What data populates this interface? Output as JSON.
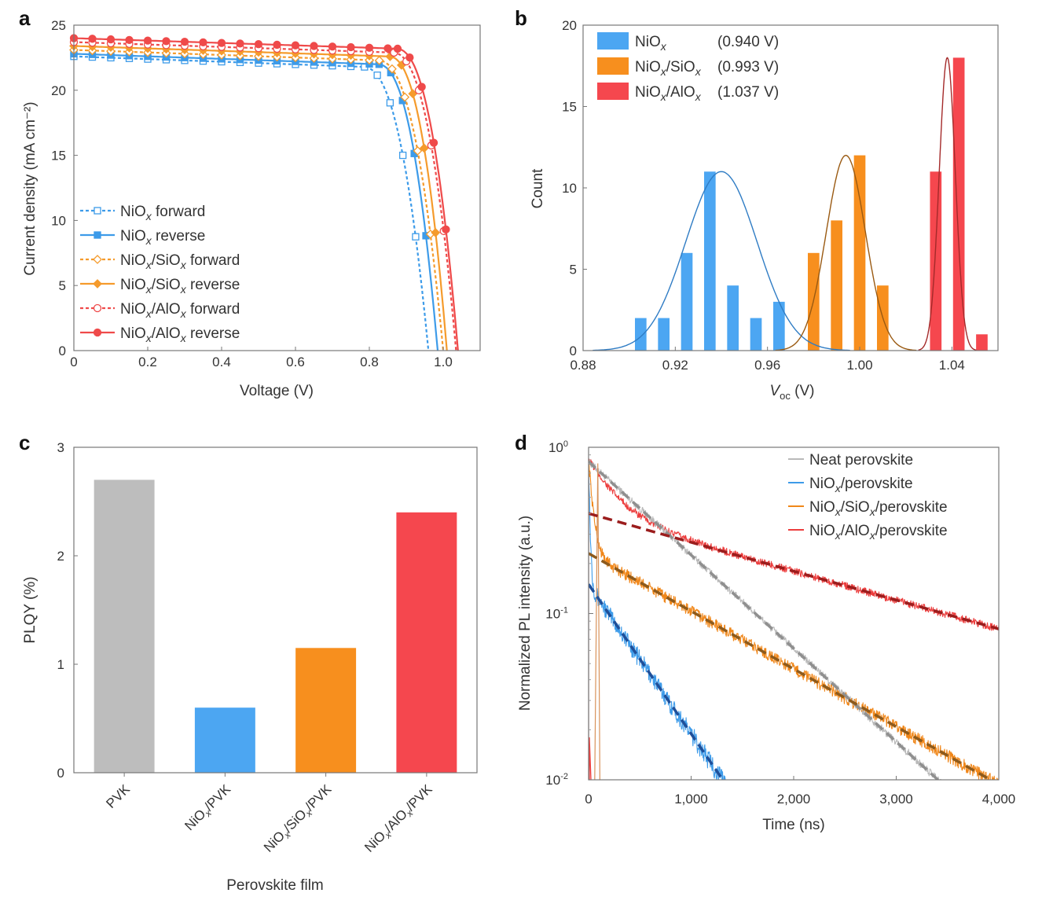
{
  "chart_data": [
    {
      "panel": "a",
      "type": "line",
      "xlabel": "Voltage (V)",
      "ylabel": "Current density (mA cm⁻²)",
      "xlim": [
        0,
        1.1
      ],
      "ylim": [
        0,
        25
      ],
      "xticks": [
        "0",
        "0.2",
        "0.4",
        "0.6",
        "0.8",
        "1.0"
      ],
      "xtick_values": [
        0,
        0.2,
        0.4,
        0.6,
        0.8,
        1.0
      ],
      "yticks": [
        "0",
        "5",
        "10",
        "15",
        "20",
        "25"
      ],
      "ytick_values": [
        0,
        5,
        10,
        15,
        20,
        25
      ],
      "series": [
        {
          "name": "NiOx forward",
          "base": "NiO",
          "sub": "x",
          "rest": " forward",
          "color": "#3d9be9",
          "style": "dotted",
          "marker": "open-square",
          "jsc": 22.6,
          "voc": 0.96,
          "knee": 0.78
        },
        {
          "name": "NiOx reverse",
          "base": "NiO",
          "sub": "x",
          "rest": " reverse",
          "color": "#3d9be9",
          "style": "solid",
          "marker": "filled-square",
          "jsc": 22.8,
          "voc": 0.985,
          "knee": 0.82
        },
        {
          "name": "NiOx/SiOx forward",
          "base": "NiO",
          "sub": "x",
          "rest": "/SiO",
          "sub2": "x",
          "rest2": " forward",
          "color": "#f59b2c",
          "style": "dotted",
          "marker": "open-diamond",
          "jsc": 23.1,
          "voc": 1.0,
          "knee": 0.82
        },
        {
          "name": "NiOx/SiOx reverse",
          "base": "NiO",
          "sub": "x",
          "rest": "/SiO",
          "sub2": "x",
          "rest2": " reverse",
          "color": "#f59b2c",
          "style": "solid",
          "marker": "filled-diamond",
          "jsc": 23.4,
          "voc": 1.01,
          "knee": 0.85
        },
        {
          "name": "NiOx/AlOx forward",
          "base": "NiO",
          "sub": "x",
          "rest": "/AlO",
          "sub2": "x",
          "rest2": " forward",
          "color": "#ef4a4a",
          "style": "dotted",
          "marker": "open-circle",
          "jsc": 23.7,
          "voc": 1.035,
          "knee": 0.86
        },
        {
          "name": "NiOx/AlOx reverse",
          "base": "NiO",
          "sub": "x",
          "rest": "/AlO",
          "sub2": "x",
          "rest2": " reverse",
          "color": "#ef4a4a",
          "style": "solid",
          "marker": "filled-circle",
          "jsc": 24.0,
          "voc": 1.04,
          "knee": 0.87
        }
      ]
    },
    {
      "panel": "b",
      "type": "bar",
      "xlabel": "V",
      "xlabel_sub": "oc",
      "xlabel_rest": " (V)",
      "ylabel": "Count",
      "xlim": [
        0.88,
        1.06
      ],
      "ylim": [
        0,
        20
      ],
      "xticks": [
        "0.88",
        "0.92",
        "0.96",
        "1.00",
        "1.04"
      ],
      "xtick_values": [
        0.88,
        0.92,
        0.96,
        1.0,
        1.04
      ],
      "yticks": [
        "0",
        "5",
        "10",
        "15",
        "20"
      ],
      "ytick_values": [
        0,
        5,
        10,
        15,
        20
      ],
      "bin_width": 0.005,
      "series": [
        {
          "name": "NiOx",
          "base": "NiO",
          "sub": "x",
          "rest": "",
          "value_text": "(0.940 V)",
          "color": "#4ca6f2",
          "fit_color": "#2f7cc4",
          "x": [
            0.905,
            0.915,
            0.925,
            0.935,
            0.945,
            0.955,
            0.965
          ],
          "values": [
            2,
            2,
            6,
            11,
            4,
            2,
            3
          ],
          "fit_mu": 0.94,
          "fit_sigma": 0.0155,
          "fit_peak": 11
        },
        {
          "name": "NiOx/SiOx",
          "base": "NiO",
          "sub": "x",
          "rest": "/SiO",
          "sub2": "x",
          "value_text": "(0.993 V)",
          "color": "#f78f1e",
          "fit_color": "#9a5a12",
          "x": [
            0.98,
            0.99,
            1.0,
            1.01
          ],
          "values": [
            6,
            8,
            12,
            4
          ],
          "fit_mu": 0.994,
          "fit_sigma": 0.0085,
          "fit_peak": 12
        },
        {
          "name": "NiOx/AlOx",
          "base": "NiO",
          "sub": "x",
          "rest": "/AlO",
          "sub2": "x",
          "value_text": "(1.037 V)",
          "color": "#f5474e",
          "fit_color": "#a42a2a",
          "x": [
            1.033,
            1.043,
            1.053
          ],
          "values": [
            11,
            18,
            1
          ],
          "fit_mu": 1.038,
          "fit_sigma": 0.0035,
          "fit_peak": 18
        }
      ]
    },
    {
      "panel": "c",
      "type": "bar",
      "xlabel": "Perovskite film",
      "ylabel": "PLQY (%)",
      "ylim": [
        0,
        3
      ],
      "yticks": [
        "0",
        "1",
        "2",
        "3"
      ],
      "ytick_values": [
        0,
        1,
        2,
        3
      ],
      "categories": [
        "PVK",
        "NiOx/PVK",
        "NiOx/SiOx/PVK",
        "NiOx/AlOx/PVK"
      ],
      "category_parts": [
        [
          [
            "PVK",
            false
          ]
        ],
        [
          [
            "NiO",
            false
          ],
          [
            "x",
            true
          ],
          [
            "/PVK",
            false
          ]
        ],
        [
          [
            "NiO",
            false
          ],
          [
            "x",
            true
          ],
          [
            "/SiO",
            false
          ],
          [
            "x",
            true
          ],
          [
            "/PVK",
            false
          ]
        ],
        [
          [
            "NiO",
            false
          ],
          [
            "x",
            true
          ],
          [
            "/AlO",
            false
          ],
          [
            "x",
            true
          ],
          [
            "/PVK",
            false
          ]
        ]
      ],
      "values": [
        2.7,
        0.6,
        1.15,
        2.4
      ],
      "colors": [
        "#bdbdbd",
        "#4ca6f2",
        "#f78f1e",
        "#f5474e"
      ]
    },
    {
      "panel": "d",
      "type": "line",
      "xlabel": "Time (ns)",
      "ylabel": "Normalized PL intensity (a.u.)",
      "xlim": [
        0,
        4000
      ],
      "ylim_log10": [
        -2,
        0
      ],
      "xticks": [
        "0",
        "1,000",
        "2,000",
        "3,000",
        "4,000"
      ],
      "xtick_values": [
        0,
        1000,
        2000,
        3000,
        4000
      ],
      "yticks_base": "10",
      "yticks_exp": [
        "-2",
        "-1",
        "0"
      ],
      "ytick_values": [
        0.01,
        0.1,
        1
      ],
      "series": [
        {
          "name": "Neat perovskite",
          "base": "Neat perovskite",
          "color": "#b9b9b9",
          "fit_color": "#8f8f8f",
          "a0": 0.95,
          "fa": 0.82,
          "ftau": 773,
          "ba": 0.0,
          "btau": 1,
          "noise": 0.05
        },
        {
          "name": "NiOx/perovskite",
          "base": "NiO",
          "sub": "x",
          "rest": "/perovskite",
          "color": "#3d9be9",
          "fit_color": "#1f4f99",
          "a0": 0.85,
          "fa": 0.15,
          "ftau": 483,
          "ba": 0.7,
          "btau": 12,
          "noise": 0.12
        },
        {
          "name": "NiOx/SiOx/perovskite",
          "base": "NiO",
          "sub": "x",
          "rest": "/SiO",
          "sub2": "x",
          "rest2": "/perovskite",
          "color": "#f0871a",
          "fit_color": "#8d5a1c",
          "a0": 0.85,
          "fa": 0.23,
          "ftau": 1250,
          "ba": 0.62,
          "btau": 40,
          "noise": 0.08
        },
        {
          "name": "NiOx/AlOx/perovskite",
          "base": "NiO",
          "sub": "x",
          "rest": "/AlO",
          "sub2": "x",
          "rest2": "/perovskite",
          "color": "#ec3d3d",
          "fit_color": "#9b1d1d",
          "a0": 0.85,
          "fa": 0.4,
          "ftau": 2500,
          "ba": 0.45,
          "btau": 250,
          "noise": 0.05
        }
      ]
    }
  ]
}
